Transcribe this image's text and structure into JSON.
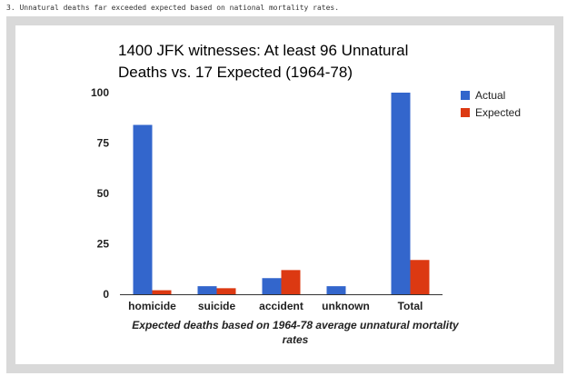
{
  "caption": "3. Unnatural deaths far exceeded expected based on national mortality rates.",
  "chart_data": {
    "type": "bar",
    "title": "1400 JFK witnesses: At least 96 Unnatural Deaths vs. 17 Expected (1964-78)",
    "title_lines": [
      "1400 JFK witnesses: At least 96 Unnatural",
      "Deaths vs. 17 Expected (1964-78)"
    ],
    "xlabel": "Expected deaths based on 1964-78 average unnatural mortality rates",
    "xlabel_lines": [
      "Expected deaths based on 1964-78 average unnatural mortality",
      "rates"
    ],
    "ylabel": "",
    "categories": [
      "homicide",
      "suicide",
      "accident",
      "unknown",
      "Total"
    ],
    "series": [
      {
        "name": "Actual",
        "color": "#3366cc",
        "values": [
          84,
          4,
          8,
          4,
          100
        ]
      },
      {
        "name": "Expected",
        "color": "#dc3912",
        "values": [
          2,
          3,
          12,
          0,
          17
        ]
      }
    ],
    "ylim": [
      0,
      100
    ],
    "yticks": [
      0,
      25,
      50,
      75,
      100
    ],
    "grid": false,
    "legend": "right"
  }
}
